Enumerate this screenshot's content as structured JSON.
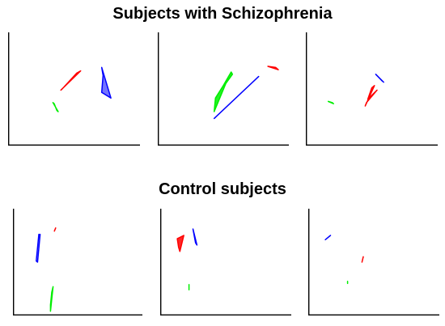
{
  "sections": {
    "top_title": "Subjects with Schizophrenia",
    "bottom_title": "Control subjects"
  },
  "colors": {
    "red": "#ff0000",
    "green": "#00ee00",
    "blue": "#0000ff",
    "blue_fill": "#5a5aff"
  },
  "chart_data": [
    {
      "type": "scatter",
      "group": "Subjects with Schizophrenia",
      "panel": 1,
      "xlim": [
        0,
        1
      ],
      "ylim": [
        0,
        1
      ],
      "shapes": [
        {
          "color": "red",
          "fill": false,
          "points": [
            [
              0.4,
              0.49
            ],
            [
              0.55,
              0.66
            ],
            [
              0.52,
              0.64
            ],
            [
              0.41,
              0.5
            ]
          ]
        },
        {
          "color": "green",
          "fill": false,
          "points": [
            [
              0.34,
              0.38
            ],
            [
              0.38,
              0.3
            ],
            [
              0.37,
              0.31
            ],
            [
              0.35,
              0.37
            ]
          ]
        },
        {
          "color": "blue",
          "fill": true,
          "points": [
            [
              0.71,
              0.69
            ],
            [
              0.78,
              0.42
            ],
            [
              0.71,
              0.47
            ],
            [
              0.72,
              0.62
            ]
          ]
        }
      ]
    },
    {
      "type": "scatter",
      "group": "Subjects with Schizophrenia",
      "panel": 2,
      "xlim": [
        0,
        1
      ],
      "ylim": [
        0,
        1
      ],
      "shapes": [
        {
          "color": "green",
          "fill": true,
          "points": [
            [
              0.43,
              0.3
            ],
            [
              0.52,
              0.55
            ],
            [
              0.57,
              0.63
            ],
            [
              0.56,
              0.65
            ],
            [
              0.5,
              0.53
            ],
            [
              0.44,
              0.42
            ]
          ]
        },
        {
          "color": "blue",
          "fill": false,
          "points": [
            [
              0.43,
              0.24
            ],
            [
              0.77,
              0.61
            ],
            [
              0.76,
              0.6
            ],
            [
              0.44,
              0.25
            ]
          ]
        },
        {
          "color": "red",
          "fill": false,
          "points": [
            [
              0.84,
              0.7
            ],
            [
              0.92,
              0.67
            ],
            [
              0.9,
              0.69
            ]
          ]
        }
      ]
    },
    {
      "type": "scatter",
      "group": "Subjects with Schizophrenia",
      "panel": 3,
      "xlim": [
        0,
        1
      ],
      "ylim": [
        0,
        1
      ],
      "shapes": [
        {
          "color": "green",
          "fill": false,
          "points": [
            [
              0.17,
              0.39
            ],
            [
              0.21,
              0.37
            ],
            [
              0.2,
              0.38
            ]
          ]
        },
        {
          "color": "red",
          "fill": true,
          "points": [
            [
              0.45,
              0.35
            ],
            [
              0.52,
              0.53
            ],
            [
              0.5,
              0.51
            ],
            [
              0.47,
              0.41
            ],
            [
              0.54,
              0.49
            ],
            [
              0.46,
              0.38
            ]
          ]
        },
        {
          "color": "blue",
          "fill": false,
          "points": [
            [
              0.53,
              0.63
            ],
            [
              0.59,
              0.56
            ],
            [
              0.58,
              0.57
            ]
          ]
        }
      ]
    },
    {
      "type": "scatter",
      "group": "Control subjects",
      "panel": 1,
      "xlim": [
        0,
        1
      ],
      "ylim": [
        0,
        1
      ],
      "shapes": [
        {
          "color": "blue",
          "fill": false,
          "points": [
            [
              0.19,
              0.5
            ],
            [
              0.21,
              0.76
            ],
            [
              0.2,
              0.76
            ],
            [
              0.18,
              0.51
            ]
          ]
        },
        {
          "color": "red",
          "fill": false,
          "points": [
            [
              0.32,
              0.79
            ],
            [
              0.33,
              0.82
            ]
          ]
        },
        {
          "color": "green",
          "fill": true,
          "points": [
            [
              0.29,
              0.04
            ],
            [
              0.31,
              0.27
            ],
            [
              0.3,
              0.22
            ],
            [
              0.29,
              0.1
            ]
          ]
        }
      ]
    },
    {
      "type": "scatter",
      "group": "Control subjects",
      "panel": 2,
      "xlim": [
        0,
        1
      ],
      "ylim": [
        0,
        1
      ],
      "shapes": [
        {
          "color": "red",
          "fill": true,
          "points": [
            [
              0.15,
              0.6
            ],
            [
              0.18,
              0.75
            ],
            [
              0.13,
              0.72
            ],
            [
              0.14,
              0.64
            ]
          ]
        },
        {
          "color": "blue",
          "fill": false,
          "points": [
            [
              0.25,
              0.81
            ],
            [
              0.28,
              0.66
            ],
            [
              0.27,
              0.68
            ]
          ]
        },
        {
          "color": "green",
          "fill": false,
          "points": [
            [
              0.22,
              0.24
            ],
            [
              0.22,
              0.29
            ]
          ]
        }
      ]
    },
    {
      "type": "scatter",
      "group": "Control subjects",
      "panel": 3,
      "xlim": [
        0,
        1
      ],
      "ylim": [
        0,
        1
      ],
      "shapes": [
        {
          "color": "blue",
          "fill": false,
          "points": [
            [
              0.13,
              0.71
            ],
            [
              0.17,
              0.75
            ],
            [
              0.16,
              0.74
            ]
          ]
        },
        {
          "color": "red",
          "fill": false,
          "points": [
            [
              0.41,
              0.5
            ],
            [
              0.42,
              0.55
            ]
          ]
        },
        {
          "color": "green",
          "fill": false,
          "points": [
            [
              0.3,
              0.3
            ],
            [
              0.3,
              0.32
            ]
          ]
        }
      ]
    }
  ]
}
